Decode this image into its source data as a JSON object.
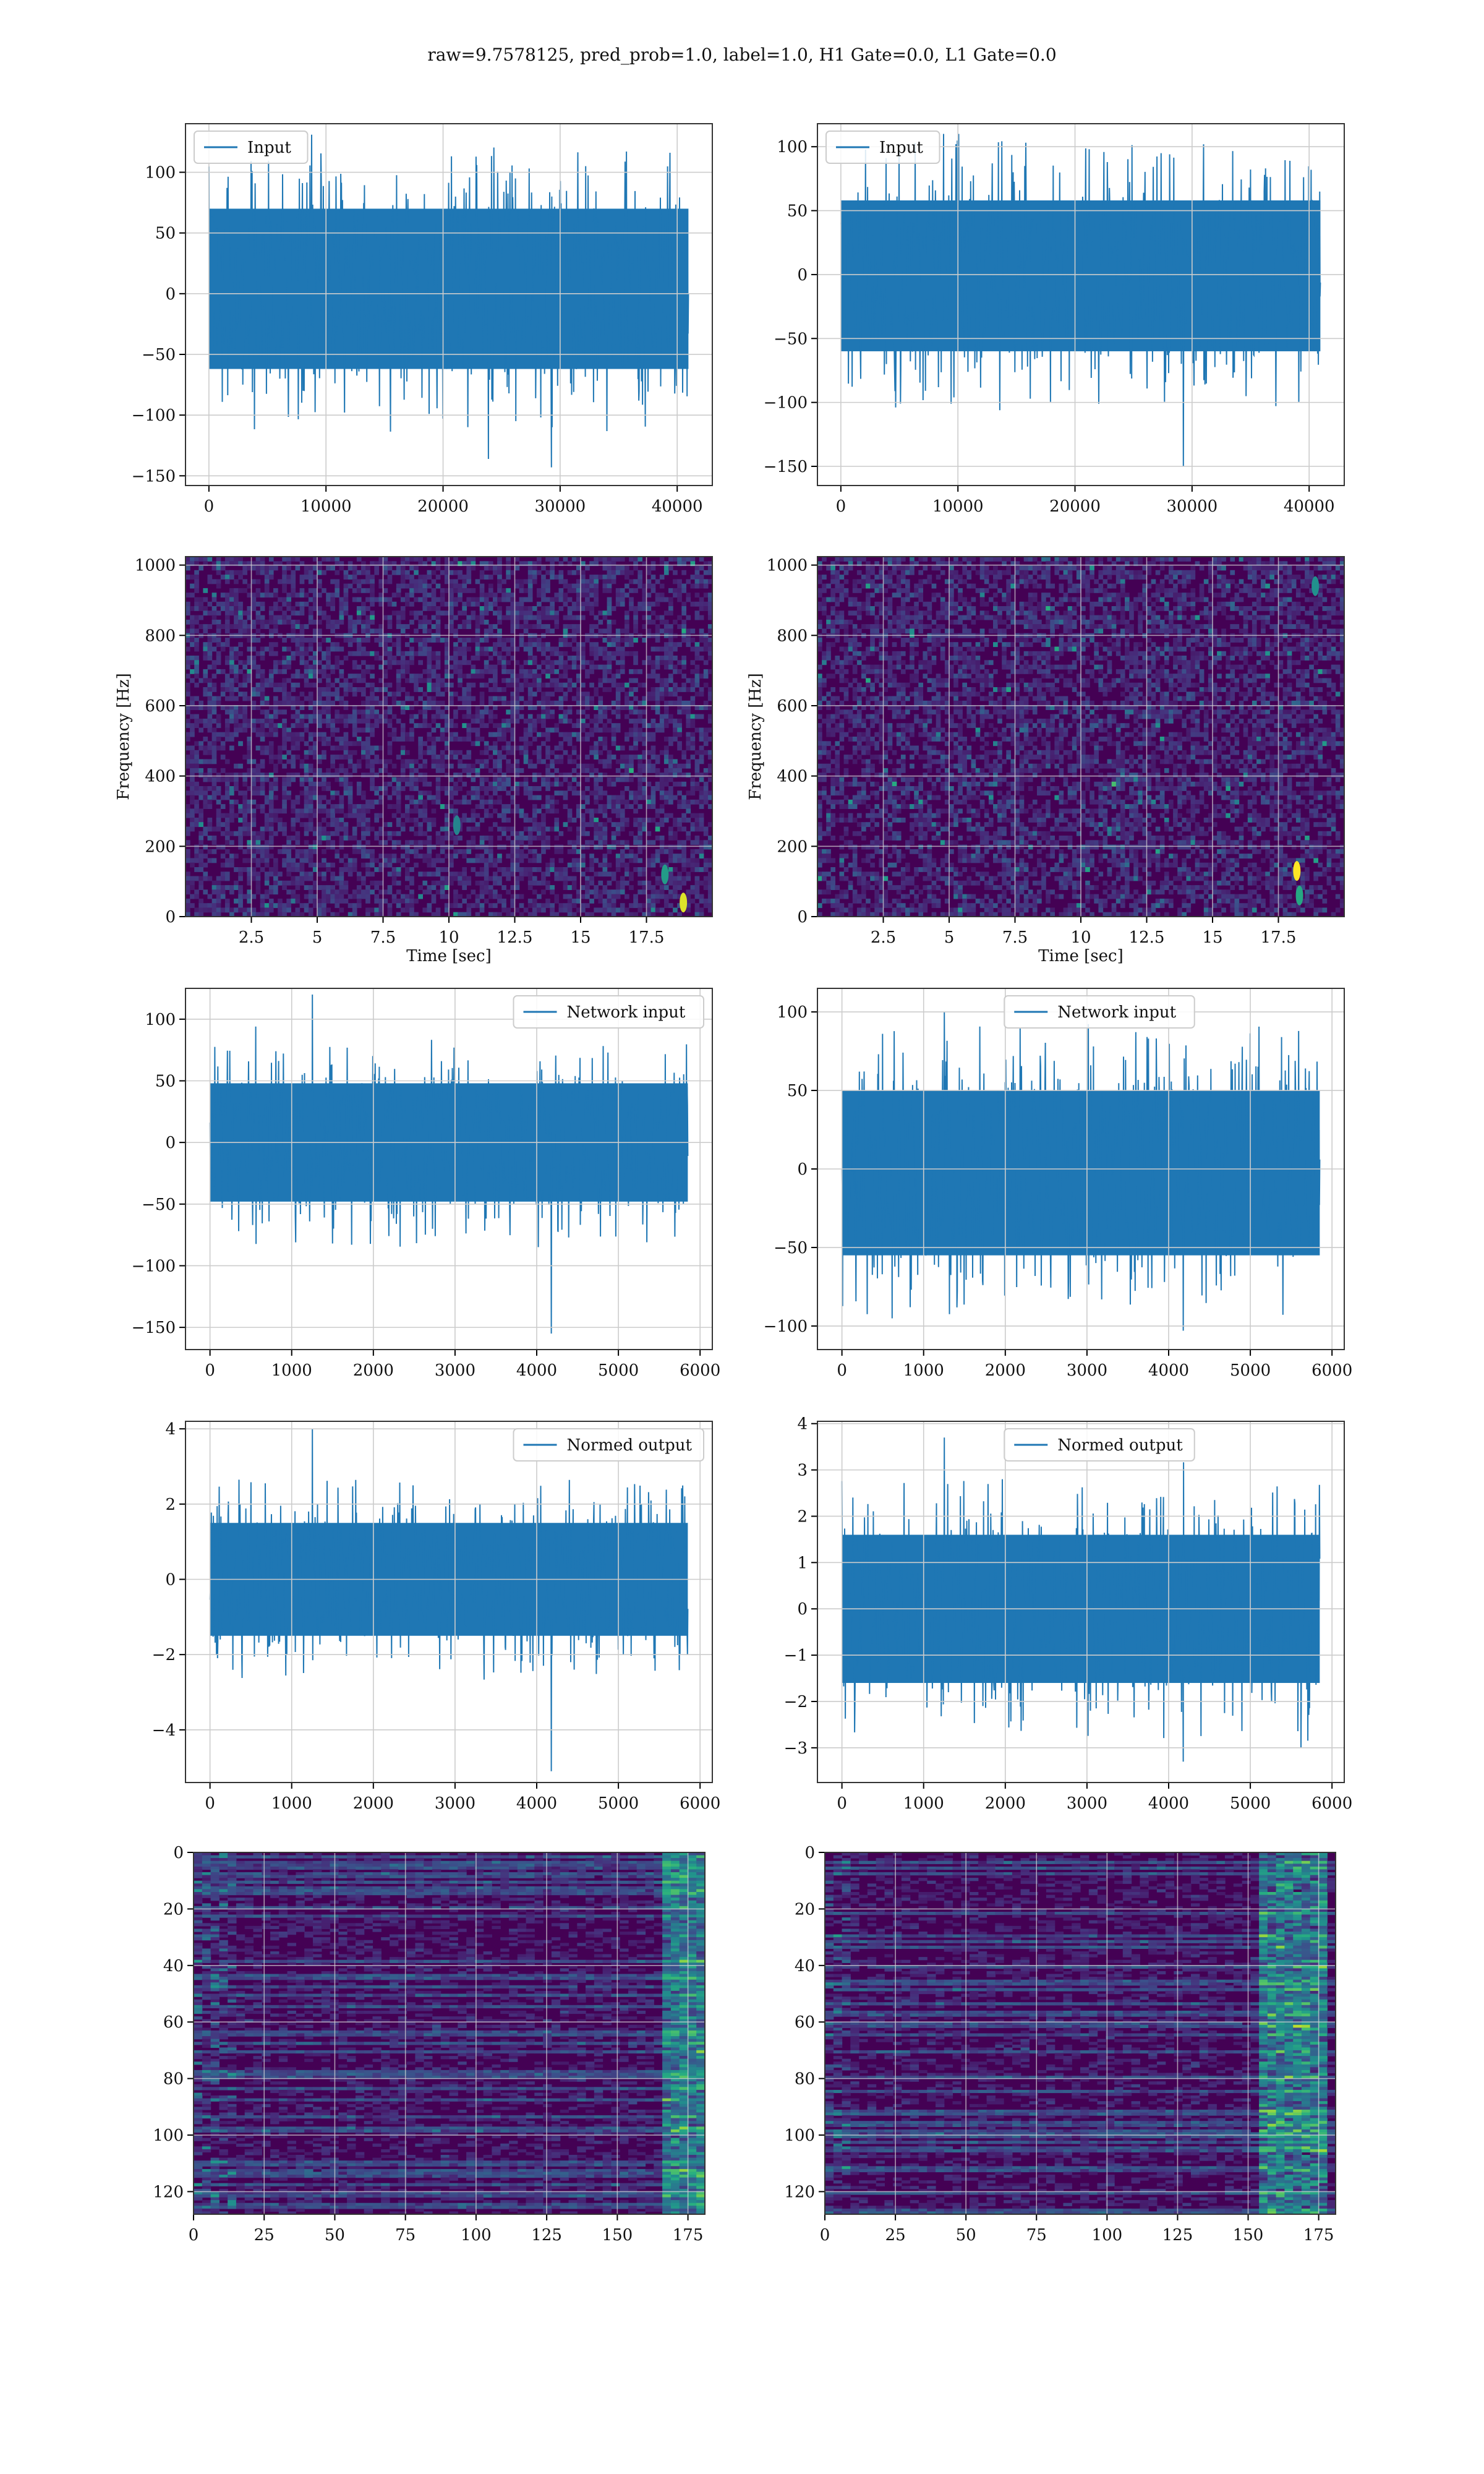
{
  "title": "raw=9.7578125, pred_prob=1.0, label=1.0, H1 Gate=0.0, L1 Gate=0.0",
  "colors": {
    "line": "#1f77b4",
    "grid": "#cccccc",
    "viridis": [
      "#440154",
      "#472c7a",
      "#3b518b",
      "#2c718e",
      "#21908d",
      "#27ad81",
      "#5cc863",
      "#aadc32",
      "#fde725"
    ]
  },
  "chart_data": [
    {
      "id": "r1c1",
      "type": "line",
      "legend": [
        "Input"
      ],
      "legend_loc": "upper left",
      "xlim": [
        -2000,
        43000
      ],
      "ylim": [
        -158,
        140
      ],
      "xticks": [
        0,
        10000,
        20000,
        30000,
        40000
      ],
      "yticks": [
        -150,
        -100,
        -50,
        0,
        50,
        100
      ],
      "x_range": [
        0,
        40960
      ],
      "envelope": {
        "band": [
          -62,
          70
        ],
        "max": 131,
        "min": -143
      }
    },
    {
      "id": "r1c2",
      "type": "line",
      "legend": [
        "Input"
      ],
      "legend_loc": "upper left",
      "xlim": [
        -2000,
        43000
      ],
      "ylim": [
        -165,
        118
      ],
      "xticks": [
        0,
        10000,
        20000,
        30000,
        40000
      ],
      "yticks": [
        -150,
        -100,
        -50,
        0,
        50,
        100
      ],
      "x_range": [
        0,
        40960
      ],
      "envelope": {
        "band": [
          -60,
          58
        ],
        "max": 110,
        "min": -150
      }
    },
    {
      "id": "r2c1",
      "type": "heatmap",
      "xlabel": "Time [sec]",
      "ylabel": "Frequency [Hz]",
      "xlim": [
        0,
        20
      ],
      "ylim": [
        0,
        1024
      ],
      "xticks": [
        2.5,
        5.0,
        7.5,
        10.0,
        12.5,
        15.0,
        17.5
      ],
      "yticks": [
        0,
        200,
        400,
        600,
        800,
        1000
      ],
      "hotspots": [
        {
          "t": 18.9,
          "f": 40,
          "v": 0.95
        },
        {
          "t": 18.2,
          "f": 120,
          "v": 0.55
        },
        {
          "t": 10.3,
          "f": 260,
          "v": 0.45
        }
      ]
    },
    {
      "id": "r2c2",
      "type": "heatmap",
      "xlabel": "Time [sec]",
      "ylabel": "Frequency [Hz]",
      "xlim": [
        0,
        20
      ],
      "ylim": [
        0,
        1024
      ],
      "xticks": [
        2.5,
        5.0,
        7.5,
        10.0,
        12.5,
        15.0,
        17.5
      ],
      "yticks": [
        0,
        200,
        400,
        600,
        800,
        1000
      ],
      "hotspots": [
        {
          "t": 18.2,
          "f": 130,
          "v": 1.0
        },
        {
          "t": 18.3,
          "f": 60,
          "v": 0.6
        },
        {
          "t": 18.9,
          "f": 940,
          "v": 0.5
        }
      ]
    },
    {
      "id": "r3c1",
      "type": "line",
      "legend": [
        "Network input"
      ],
      "legend_loc": "upper right",
      "xlim": [
        -300,
        6150
      ],
      "ylim": [
        -168,
        125
      ],
      "xticks": [
        0,
        1000,
        2000,
        3000,
        4000,
        5000,
        6000
      ],
      "yticks": [
        -150,
        -100,
        -50,
        0,
        50,
        100
      ],
      "x_range": [
        0,
        5850
      ],
      "envelope": {
        "band": [
          -48,
          48
        ],
        "max": 120,
        "min": -155
      }
    },
    {
      "id": "r3c2",
      "type": "line",
      "legend": [
        "Network input"
      ],
      "legend_loc": "upper center",
      "xlim": [
        -300,
        6150
      ],
      "ylim": [
        -115,
        115
      ],
      "xticks": [
        0,
        1000,
        2000,
        3000,
        4000,
        5000,
        6000
      ],
      "yticks": [
        -100,
        -50,
        0,
        50,
        100
      ],
      "x_range": [
        0,
        5850
      ],
      "envelope": {
        "band": [
          -55,
          50
        ],
        "max": 100,
        "min": -103
      }
    },
    {
      "id": "r4c1",
      "type": "line",
      "legend": [
        "Normed output"
      ],
      "legend_loc": "upper right",
      "xlim": [
        -300,
        6150
      ],
      "ylim": [
        -5.4,
        4.2
      ],
      "xticks": [
        0,
        1000,
        2000,
        3000,
        4000,
        5000,
        6000
      ],
      "yticks": [
        -4,
        -2,
        0,
        2,
        4
      ],
      "x_range": [
        0,
        5850
      ],
      "envelope": {
        "band": [
          -1.5,
          1.5
        ],
        "max": 4.0,
        "min": -5.1
      }
    },
    {
      "id": "r4c2",
      "type": "line",
      "legend": [
        "Normed output"
      ],
      "legend_loc": "upper center",
      "xlim": [
        -300,
        6150
      ],
      "ylim": [
        -3.75,
        4.05
      ],
      "xticks": [
        0,
        1000,
        2000,
        3000,
        4000,
        5000,
        6000
      ],
      "yticks": [
        -3,
        -2,
        -1,
        0,
        1,
        2,
        3,
        4
      ],
      "x_range": [
        0,
        5850
      ],
      "envelope": {
        "band": [
          -1.6,
          1.6
        ],
        "max": 3.7,
        "min": -3.3
      }
    },
    {
      "id": "r5c1",
      "type": "heatmap",
      "xlim": [
        0,
        181
      ],
      "ylim": [
        128,
        0
      ],
      "xticks": [
        0,
        25,
        50,
        75,
        100,
        125,
        150,
        175
      ],
      "yticks": [
        0,
        20,
        40,
        60,
        80,
        100,
        120
      ],
      "hot_region": "right edge and left edge"
    },
    {
      "id": "r5c2",
      "type": "heatmap",
      "xlim": [
        0,
        181
      ],
      "ylim": [
        128,
        0
      ],
      "xticks": [
        0,
        25,
        50,
        75,
        100,
        125,
        150,
        175
      ],
      "yticks": [
        0,
        20,
        40,
        60,
        80,
        100,
        120
      ],
      "hot_region": "right side near 160-175"
    }
  ]
}
